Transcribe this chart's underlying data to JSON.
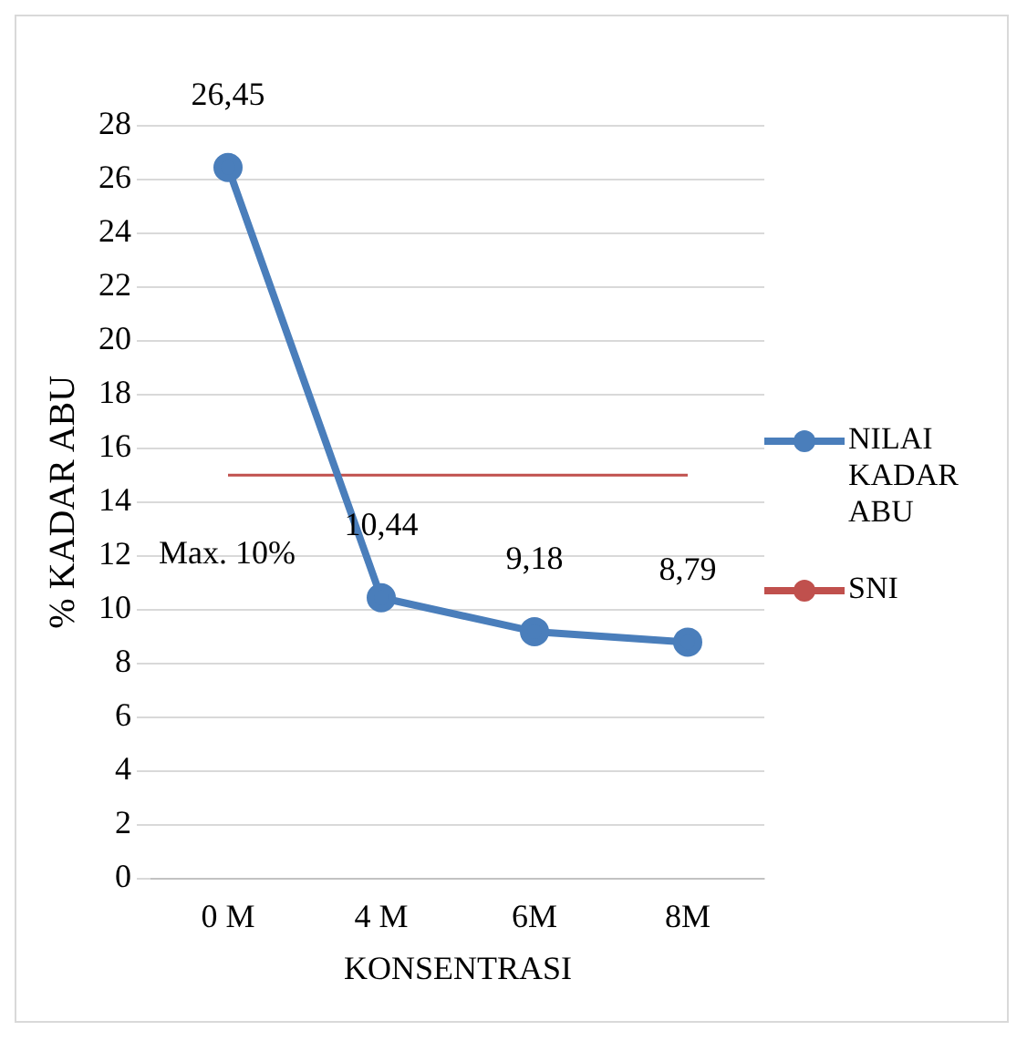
{
  "chart_data": {
    "type": "line",
    "xlabel": "KONSENTRASI",
    "ylabel": "% KADAR ABU",
    "categories": [
      "0 M",
      "4 M",
      "6M",
      "8M"
    ],
    "series": [
      {
        "name": "NILAI KADAR ABU",
        "color": "#4a7ebb",
        "values": [
          26.45,
          10.44,
          9.18,
          8.79
        ],
        "value_labels": [
          "26,45",
          "10,44",
          "9,18",
          "8,79"
        ],
        "marker": "circle"
      },
      {
        "name": "SNI",
        "color": "#c0504d",
        "values": [
          15,
          15,
          15,
          15
        ],
        "marker": "none"
      }
    ],
    "ylim": [
      0,
      28
    ],
    "yticks": [
      0,
      2,
      4,
      6,
      8,
      10,
      12,
      14,
      16,
      18,
      20,
      22,
      24,
      26,
      28
    ],
    "grid": "y",
    "legend": "right",
    "annotations": [
      "Max. 10%"
    ]
  }
}
